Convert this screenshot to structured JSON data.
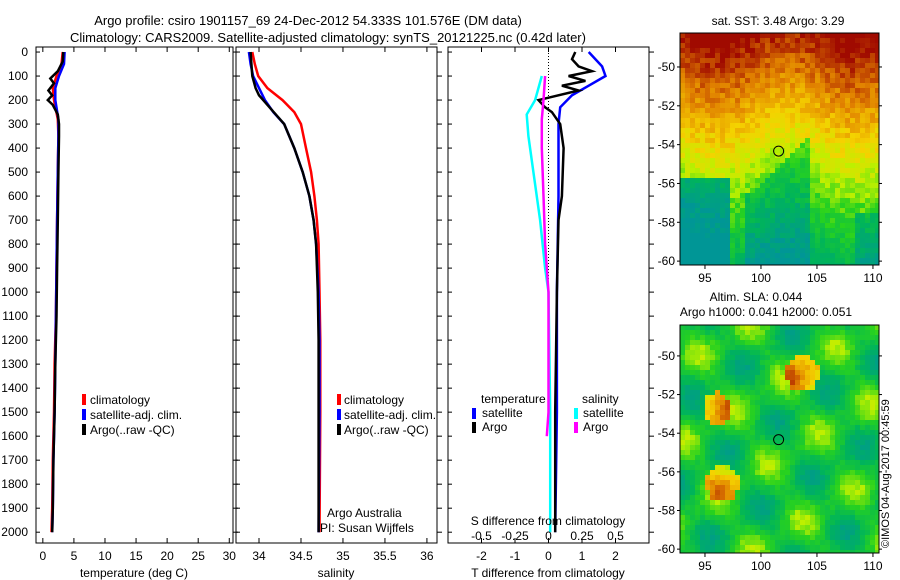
{
  "header": {
    "title_line1": "Argo profile: csiro 1901157_69 24-Dec-2012 54.333S 101.576E (DM data)",
    "title_line2": "Climatology: CARS2009. Satellite-adjusted climatology: synTS_20121225.nc (0.42d later)"
  },
  "colors": {
    "climatology": "#ff0000",
    "satellite": "#0000ff",
    "argo": "#000000",
    "sal_satellite": "#00ffff",
    "sal_argo": "#ff00ff"
  },
  "credit": "©IMOS 04-Aug-2017 00:45:59",
  "chart_data": [
    {
      "id": "temperature",
      "type": "line",
      "xlabel": "temperature (deg C)",
      "xlim": [
        -1.1,
        30.6
      ],
      "ylim": [
        2045,
        -21
      ],
      "xticks": [
        0,
        5,
        10,
        15,
        20,
        25,
        30
      ],
      "yticks": [
        0,
        100,
        200,
        300,
        400,
        500,
        600,
        700,
        800,
        900,
        1000,
        1100,
        1200,
        1300,
        1400,
        1500,
        1600,
        1700,
        1800,
        1900,
        2000
      ],
      "legend": [
        "climatology",
        "satellite-adj. clim.",
        "Argo(..raw -QC)"
      ],
      "series": [
        {
          "name": "climatology",
          "color": "#ff0000",
          "points": [
            [
              3.2,
              0
            ],
            [
              3.0,
              50
            ],
            [
              2.2,
              100
            ],
            [
              1.6,
              150
            ],
            [
              1.8,
              200
            ],
            [
              2.4,
              280
            ],
            [
              2.5,
              350
            ],
            [
              2.4,
              500
            ],
            [
              2.3,
              700
            ],
            [
              2.2,
              900
            ],
            [
              2.1,
              1100
            ],
            [
              1.9,
              1300
            ],
            [
              1.8,
              1500
            ],
            [
              1.6,
              1700
            ],
            [
              1.5,
              1900
            ],
            [
              1.4,
              2000
            ]
          ]
        },
        {
          "name": "satellite",
          "color": "#0000ff",
          "points": [
            [
              3.5,
              0
            ],
            [
              3.4,
              50
            ],
            [
              2.6,
              100
            ],
            [
              2.0,
              150
            ],
            [
              2.0,
              200
            ],
            [
              2.5,
              280
            ],
            [
              2.5,
              350
            ],
            [
              2.4,
              500
            ],
            [
              2.3,
              700
            ],
            [
              2.2,
              900
            ],
            [
              2.1,
              1100
            ],
            [
              2.0,
              1300
            ],
            [
              1.9,
              1500
            ],
            [
              1.7,
              1700
            ],
            [
              1.6,
              1900
            ],
            [
              1.5,
              2000
            ]
          ]
        },
        {
          "name": "Argo",
          "color": "#000000",
          "points": [
            [
              3.3,
              0
            ],
            [
              3.2,
              40
            ],
            [
              2.4,
              80
            ],
            [
              1.2,
              110
            ],
            [
              1.8,
              130
            ],
            [
              0.9,
              160
            ],
            [
              1.5,
              180
            ],
            [
              0.8,
              200
            ],
            [
              1.6,
              220
            ],
            [
              2.4,
              260
            ],
            [
              2.6,
              300
            ],
            [
              2.6,
              350
            ],
            [
              2.5,
              500
            ],
            [
              2.4,
              700
            ],
            [
              2.3,
              900
            ],
            [
              2.2,
              1100
            ],
            [
              2.0,
              1300
            ],
            [
              1.9,
              1500
            ],
            [
              1.7,
              1700
            ],
            [
              1.6,
              1900
            ],
            [
              1.5,
              2000
            ]
          ]
        }
      ]
    },
    {
      "id": "salinity",
      "type": "line",
      "xlabel": "salinity",
      "xlim": [
        33.726,
        36.12
      ],
      "ylim": [
        2045,
        -21
      ],
      "xticks": [
        34,
        34.5,
        35,
        35.5,
        36
      ],
      "legend": [
        "climatology",
        "satellite-adj. clim.",
        "Argo(..raw -QC)"
      ],
      "annotation": [
        "Argo Australia",
        "PI: Susan Wijffels"
      ],
      "series": [
        {
          "name": "climatology",
          "color": "#ff0000",
          "points": [
            [
              33.92,
              0
            ],
            [
              33.95,
              50
            ],
            [
              33.99,
              100
            ],
            [
              34.1,
              150
            ],
            [
              34.28,
              200
            ],
            [
              34.42,
              250
            ],
            [
              34.5,
              300
            ],
            [
              34.56,
              400
            ],
            [
              34.62,
              500
            ],
            [
              34.66,
              600
            ],
            [
              34.69,
              700
            ],
            [
              34.71,
              800
            ],
            [
              34.72,
              1000
            ],
            [
              34.73,
              1200
            ],
            [
              34.73,
              1500
            ],
            [
              34.72,
              2000
            ]
          ]
        },
        {
          "name": "satellite",
          "color": "#0000ff",
          "points": [
            [
              33.88,
              0
            ],
            [
              33.9,
              50
            ],
            [
              33.93,
              100
            ],
            [
              34.0,
              150
            ],
            [
              34.07,
              200
            ],
            [
              34.17,
              250
            ],
            [
              34.3,
              300
            ],
            [
              34.42,
              400
            ],
            [
              34.52,
              500
            ],
            [
              34.6,
              600
            ],
            [
              34.65,
              700
            ],
            [
              34.68,
              800
            ],
            [
              34.71,
              1000
            ],
            [
              34.72,
              1200
            ],
            [
              34.72,
              1500
            ],
            [
              34.71,
              2000
            ]
          ]
        },
        {
          "name": "Argo",
          "color": "#000000",
          "points": [
            [
              33.9,
              0
            ],
            [
              33.91,
              50
            ],
            [
              33.92,
              100
            ],
            [
              33.96,
              150
            ],
            [
              34.0,
              180
            ],
            [
              34.05,
              200
            ],
            [
              34.15,
              240
            ],
            [
              34.3,
              300
            ],
            [
              34.42,
              400
            ],
            [
              34.52,
              500
            ],
            [
              34.6,
              600
            ],
            [
              34.65,
              700
            ],
            [
              34.68,
              800
            ],
            [
              34.7,
              1000
            ],
            [
              34.71,
              1200
            ],
            [
              34.71,
              1500
            ],
            [
              34.71,
              2000
            ]
          ]
        }
      ]
    },
    {
      "id": "difference",
      "type": "line",
      "xlabel": "T difference from climatology",
      "x2label": "S difference from climatology",
      "xlim": [
        -3,
        3
      ],
      "ylim": [
        2045,
        -21
      ],
      "xticks": [
        -2,
        -1,
        0,
        1,
        2
      ],
      "x2ticks": [
        "-0.5",
        "-0.25",
        "0",
        "0.25",
        "0.5"
      ],
      "legend_temperature": {
        "title": "temperature",
        "items": [
          "satellite",
          "Argo"
        ]
      },
      "legend_salinity": {
        "title": "salinity",
        "items": [
          "satellite",
          "Argo"
        ]
      },
      "series": [
        {
          "name": "T satellite",
          "color": "#0000ff",
          "points": [
            [
              1.2,
              0
            ],
            [
              1.6,
              60
            ],
            [
              1.7,
              100
            ],
            [
              1.2,
              140
            ],
            [
              0.7,
              180
            ],
            [
              0.35,
              230
            ],
            [
              0.3,
              300
            ],
            [
              0.3,
              600
            ],
            [
              0.25,
              1000
            ],
            [
              0.25,
              1500
            ],
            [
              0.2,
              2000
            ]
          ]
        },
        {
          "name": "T Argo",
          "color": "#000000",
          "points": [
            [
              0.8,
              0
            ],
            [
              0.7,
              30
            ],
            [
              0.9,
              60
            ],
            [
              1.3,
              80
            ],
            [
              0.6,
              100
            ],
            [
              1.1,
              120
            ],
            [
              0.4,
              140
            ],
            [
              0.9,
              160
            ],
            [
              0.0,
              190
            ],
            [
              -0.3,
              200
            ],
            [
              -0.1,
              230
            ],
            [
              0.1,
              250
            ],
            [
              0.35,
              300
            ],
            [
              0.45,
              400
            ],
            [
              0.4,
              600
            ],
            [
              0.3,
              700
            ],
            [
              0.25,
              1000
            ],
            [
              0.2,
              1500
            ],
            [
              0.2,
              2000
            ]
          ]
        },
        {
          "name": "S satellite",
          "color": "#00ffff",
          "points": [
            [
              -0.2,
              100
            ],
            [
              -0.4,
              200
            ],
            [
              -0.65,
              260
            ],
            [
              -0.6,
              350
            ],
            [
              -0.45,
              500
            ],
            [
              -0.25,
              700
            ],
            [
              -0.1,
              900
            ],
            [
              0.0,
              1000
            ],
            [
              0.05,
              1500
            ],
            [
              0.05,
              2000
            ]
          ]
        },
        {
          "name": "S Argo",
          "color": "#ff00ff",
          "points": [
            [
              -0.1,
              100
            ],
            [
              -0.15,
              200
            ],
            [
              -0.2,
              280
            ],
            [
              -0.2,
              400
            ],
            [
              -0.15,
              600
            ],
            [
              -0.1,
              800
            ],
            [
              0.0,
              1000
            ],
            [
              0.0,
              1500
            ],
            [
              -0.05,
              1600
            ]
          ]
        }
      ]
    },
    {
      "id": "sst-map",
      "type": "heatmap",
      "title": "sat. SST: 3.48 Argo: 3.29",
      "xlim": [
        92.77,
        110.54
      ],
      "ylim": [
        -60.2,
        -48.25
      ],
      "xticks": [
        95,
        100,
        105,
        110
      ],
      "yticks": [
        -50,
        -52,
        -54,
        -56,
        -58,
        -60
      ],
      "marker": [
        101.576,
        -54.333
      ]
    },
    {
      "id": "sla-map",
      "type": "heatmap",
      "title_line1": "Altim. SLA: 0.044",
      "title_line2": "Argo h1000: 0.041 h2000: 0.051",
      "xlim": [
        92.77,
        110.54
      ],
      "ylim": [
        -60.2,
        -48.4
      ],
      "xticks": [
        95,
        100,
        105,
        110
      ],
      "yticks": [
        -50,
        -52,
        -54,
        -56,
        -58,
        -60
      ],
      "marker": [
        101.576,
        -54.333
      ]
    }
  ]
}
